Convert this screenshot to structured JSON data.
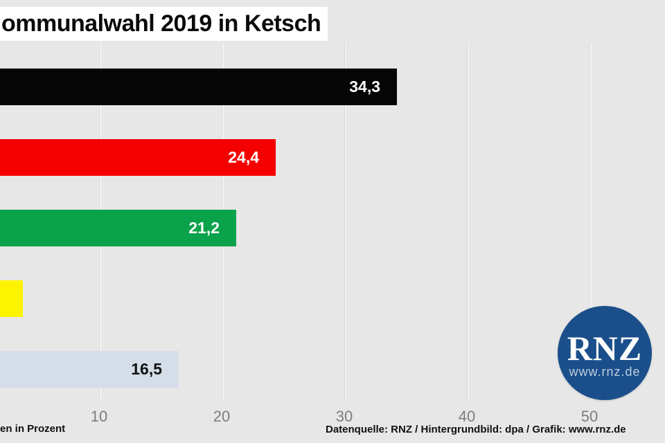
{
  "title": "ommunalwahl 2019 in Ketsch",
  "footer": {
    "left_note": "en in Prozent",
    "source": "Datenquelle: RNZ / Hintergrundbild: dpa / Grafik: www.rnz.de"
  },
  "logo": {
    "text": "RNZ",
    "subtext": "www.rnz.de",
    "bg_color": "#1a4f8b"
  },
  "colors": {
    "background": "#e7e7e7",
    "gridline": "#f3f3f3",
    "tick_label": "#7d7d7d",
    "title_bg": "#ffffff"
  },
  "chart_data": {
    "type": "bar",
    "orientation": "horizontal",
    "title": "ommunalwahl 2019 in Ketsch",
    "note": "en in Prozent",
    "categories": [
      "",
      "",
      "",
      "",
      ""
    ],
    "values": [
      34.3,
      24.4,
      21.2,
      3.8,
      16.5
    ],
    "value_labels": [
      "34,3",
      "24,4",
      "21,2",
      "",
      "16,5"
    ],
    "bar_colors": [
      "#050505",
      "#f50000",
      "#0aa24a",
      "#fdf300",
      "#d5dde8"
    ],
    "value_label_colors": [
      "#ffffff",
      "#ffffff",
      "#ffffff",
      "",
      "#111111"
    ],
    "x_ticks": [
      10,
      20,
      30,
      40,
      50
    ],
    "xlim": [
      0,
      52
    ],
    "grid": true,
    "legend": false,
    "xlabel": "",
    "ylabel": ""
  }
}
